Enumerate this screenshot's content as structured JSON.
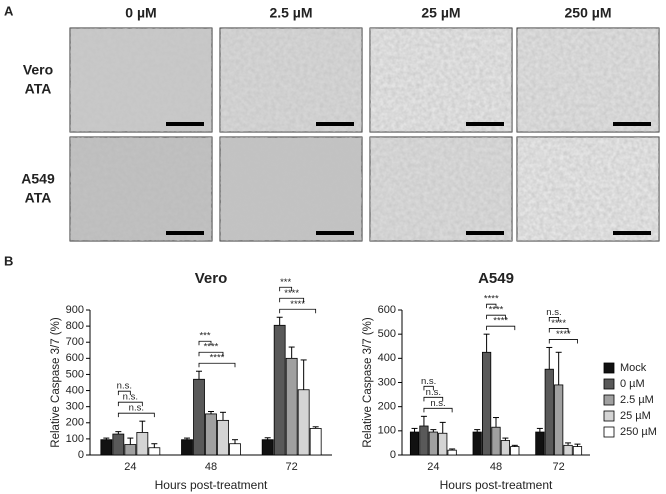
{
  "panel_a": {
    "label": "A",
    "columns": [
      "0 µM",
      "2.5 µM",
      "25 µM",
      "250 µM"
    ],
    "rows": [
      [
        "Vero",
        "ATA"
      ],
      [
        "A549",
        "ATA"
      ]
    ]
  },
  "panel_b": {
    "label": "B"
  },
  "chart_data": [
    {
      "type": "bar",
      "title": "Vero",
      "y_label": "Relative Caspase 3/7 (%)",
      "x_label": "Hours post-treatment",
      "categories": [
        "24",
        "48",
        "72"
      ],
      "series": [
        {
          "color": "#111111",
          "values": [
            95,
            95,
            95
          ],
          "errors": [
            10,
            10,
            12
          ]
        },
        {
          "color": "#595959",
          "values": [
            130,
            470,
            805
          ],
          "errors": [
            15,
            50,
            50
          ]
        },
        {
          "color": "#a0a0a0",
          "values": [
            65,
            255,
            600
          ],
          "errors": [
            40,
            15,
            70
          ]
        },
        {
          "color": "#d4d4d4",
          "values": [
            140,
            215,
            405
          ],
          "errors": [
            70,
            50,
            185
          ]
        },
        {
          "color": "#ffffff",
          "values": [
            45,
            70,
            165
          ],
          "errors": [
            25,
            25,
            10
          ]
        }
      ],
      "significance": [
        [
          "n.s.",
          "n.s.",
          "n.s."
        ],
        [
          "***",
          "****",
          "****"
        ],
        [
          "***",
          "****",
          "****"
        ]
      ],
      "ylim": [
        0,
        900
      ],
      "yticks": [
        0,
        100,
        200,
        300,
        400,
        500,
        600,
        700,
        800,
        900
      ]
    },
    {
      "type": "bar",
      "title": "A549",
      "y_label": "Relative Caspase 3/7 (%)",
      "x_label": "Hours post-treatment",
      "categories": [
        "24",
        "48",
        "72"
      ],
      "series": [
        {
          "name": "Mock",
          "color": "#111111",
          "values": [
            95,
            95,
            95
          ],
          "errors": [
            15,
            10,
            15
          ]
        },
        {
          "name": "0 µM",
          "color": "#595959",
          "values": [
            120,
            425,
            355
          ],
          "errors": [
            40,
            75,
            90
          ]
        },
        {
          "name": "2.5 µM",
          "color": "#a0a0a0",
          "values": [
            95,
            115,
            290
          ],
          "errors": [
            10,
            40,
            135
          ]
        },
        {
          "name": "25 µM",
          "color": "#d4d4d4",
          "values": [
            90,
            60,
            40
          ],
          "errors": [
            45,
            10,
            10
          ]
        },
        {
          "name": "250 µM",
          "color": "#ffffff",
          "values": [
            20,
            35,
            35
          ],
          "errors": [
            5,
            5,
            10
          ]
        }
      ],
      "significance": [
        [
          "n.s.",
          "n.s.",
          "n.s."
        ],
        [
          "****",
          "****",
          "****"
        ],
        [
          "n.s.",
          "****",
          "****"
        ]
      ],
      "ylim": [
        0,
        600
      ],
      "yticks": [
        0,
        100,
        200,
        300,
        400,
        500,
        600
      ],
      "legend": "right"
    }
  ]
}
